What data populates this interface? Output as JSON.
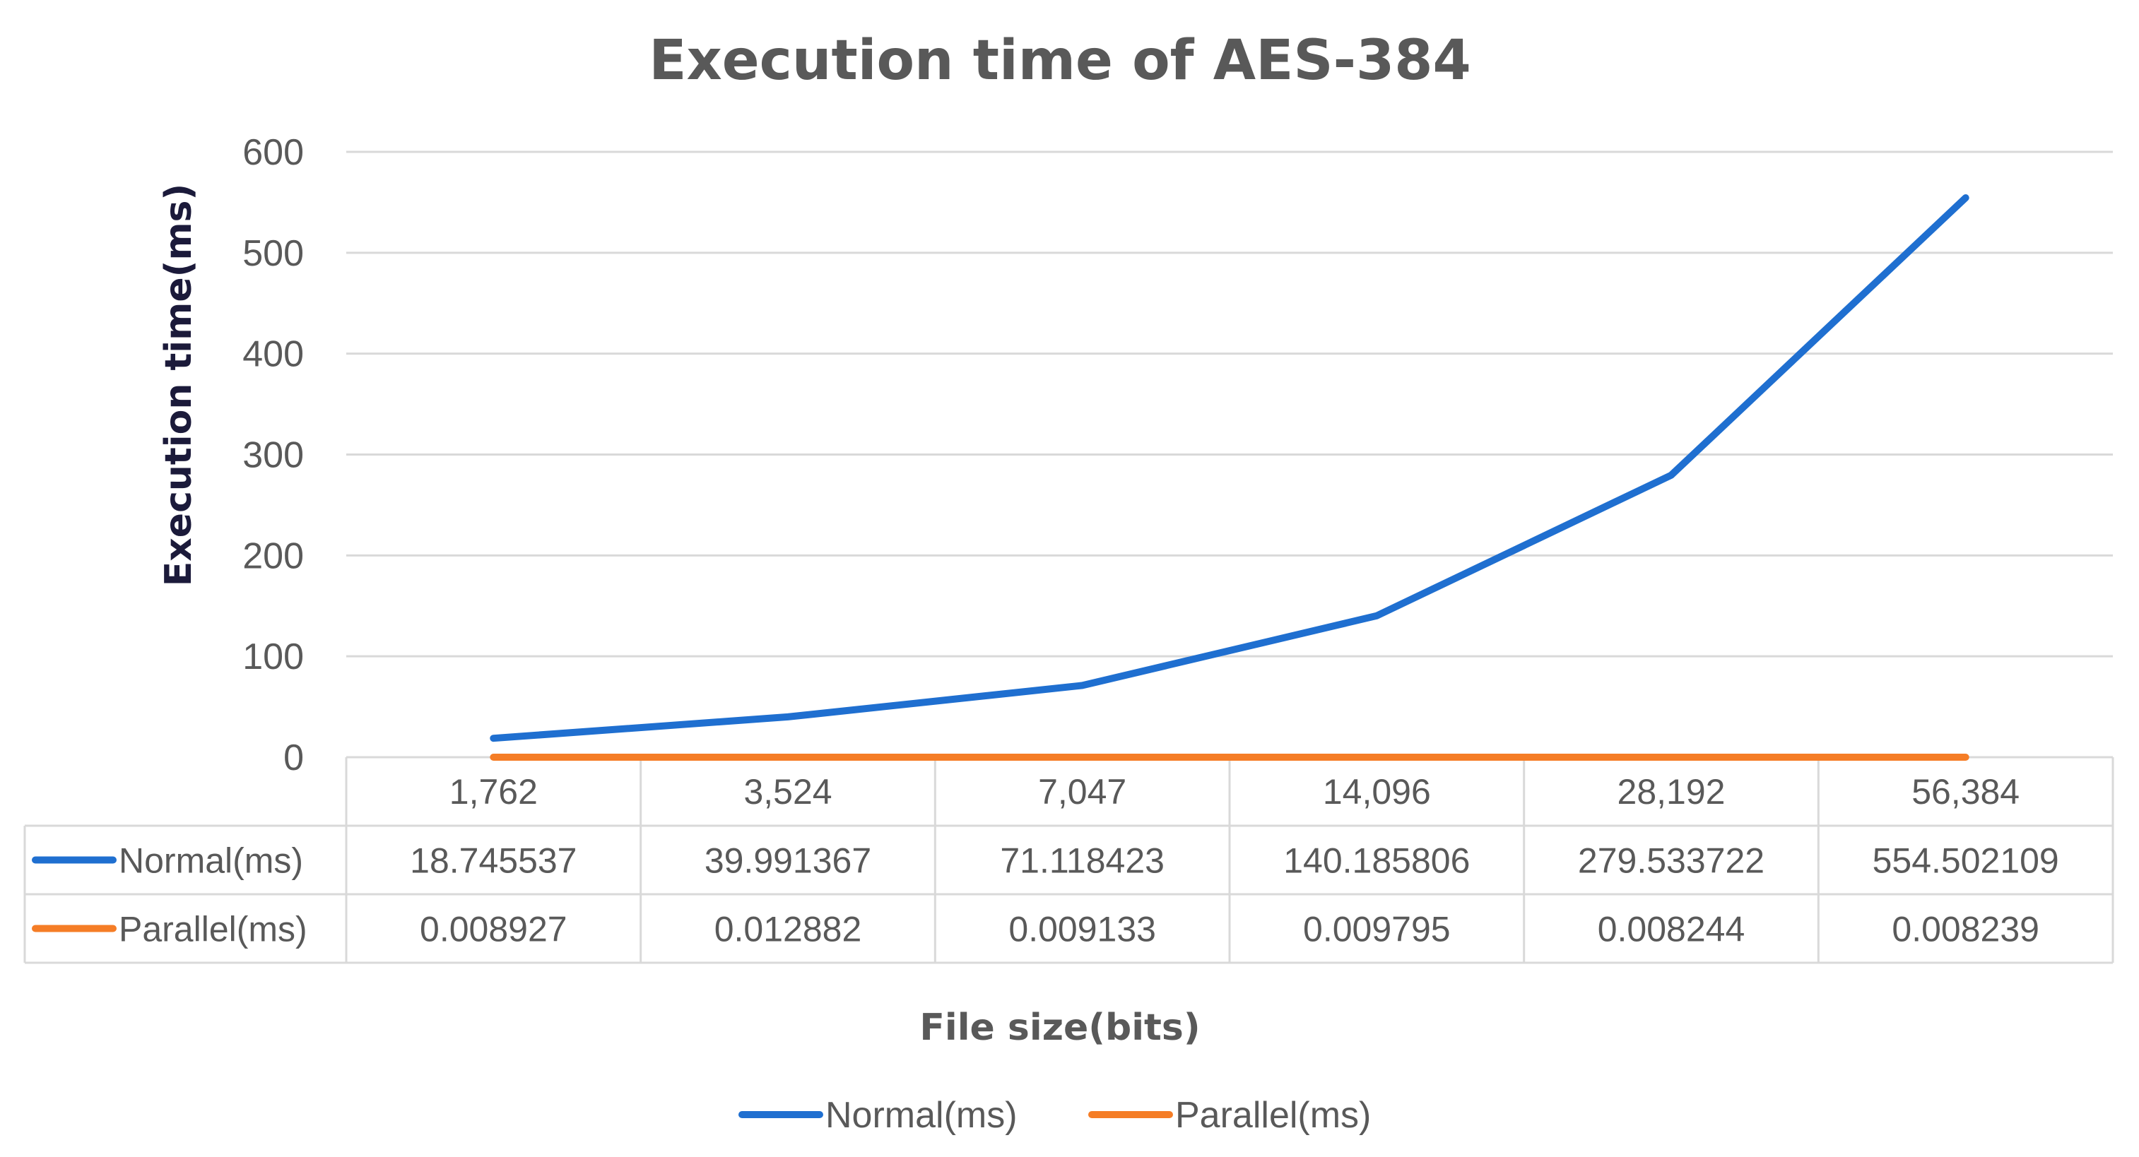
{
  "chart_data": {
    "type": "line",
    "title": "Execution time of AES-384",
    "xlabel": "File size(bits)",
    "ylabel": "Execution time(ms)",
    "categories": [
      "1,762",
      "3,524",
      "7,047",
      "14,096",
      "28,192",
      "56,384"
    ],
    "ylim": [
      0,
      600
    ],
    "yticks": [
      0,
      100,
      200,
      300,
      400,
      500,
      600
    ],
    "grid": true,
    "legend_position": "bottom",
    "data_table": true,
    "series": [
      {
        "name": "Normal(ms)",
        "color": "#1f6fd0",
        "values": [
          18.745537,
          39.991367,
          71.118423,
          140.185806,
          279.533722,
          554.502109
        ],
        "labels": [
          "18.745537",
          "39.991367",
          "71.118423",
          "140.185806",
          "279.533722",
          "554.502109"
        ]
      },
      {
        "name": "Parallel(ms)",
        "color": "#f57d26",
        "values": [
          0.008927,
          0.012882,
          0.009133,
          0.009795,
          0.008244,
          0.008239
        ],
        "labels": [
          "0.008927",
          "0.012882",
          "0.009133",
          "0.009795",
          "0.008244",
          "0.008239"
        ]
      }
    ]
  }
}
